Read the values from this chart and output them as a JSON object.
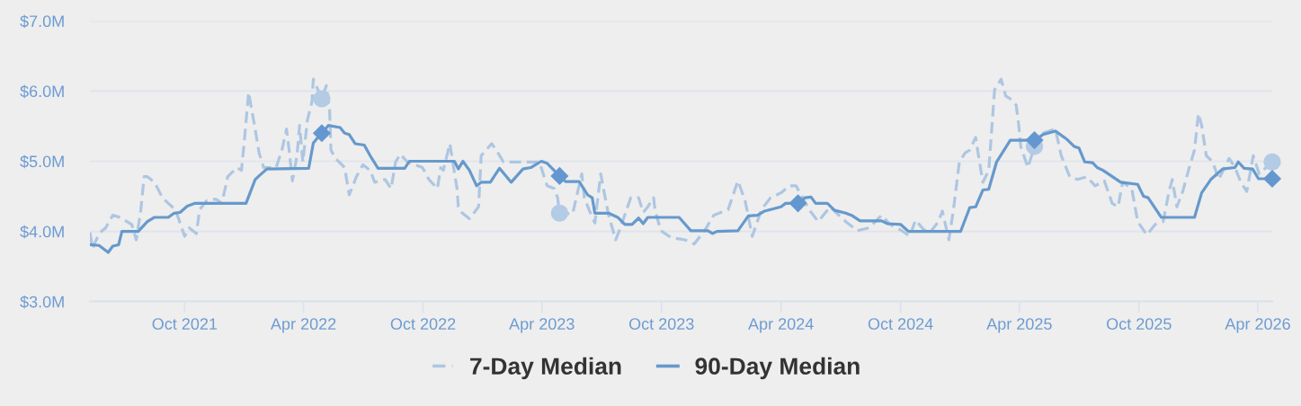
{
  "chart_data": {
    "type": "line",
    "xlim": [
      "2021-05-09",
      "2026-04-23"
    ],
    "ylim": [
      3,
      7
    ],
    "xticks": [
      {
        "value": "2021-10-01",
        "label": "Oct 2021"
      },
      {
        "value": "2022-04-01",
        "label": "Apr 2022"
      },
      {
        "value": "2022-10-01",
        "label": "Oct 2022"
      },
      {
        "value": "2023-04-01",
        "label": "Apr 2023"
      },
      {
        "value": "2023-10-01",
        "label": "Oct 2023"
      },
      {
        "value": "2024-04-01",
        "label": "Apr 2024"
      },
      {
        "value": "2024-10-01",
        "label": "Oct 2024"
      },
      {
        "value": "2025-04-01",
        "label": "Apr 2025"
      },
      {
        "value": "2025-10-01",
        "label": "Oct 2025"
      },
      {
        "value": "2026-04-01",
        "label": "Apr 2026"
      }
    ],
    "yticks": [
      {
        "value": 3,
        "label": "$3.0M"
      },
      {
        "value": 4,
        "label": "$4.0M"
      },
      {
        "value": 5,
        "label": "$5.0M"
      },
      {
        "value": 6,
        "label": "$6.0M"
      },
      {
        "value": 7,
        "label": "$7.0M"
      }
    ],
    "grid": "y",
    "legend": "bottom",
    "series": [
      {
        "name": "7-Day Median",
        "color": "#adc6e2",
        "line_style": "dashed",
        "x": [
          "2021-05-09",
          "2021-05-13",
          "2021-05-23",
          "2021-06-02",
          "2021-06-13",
          "2021-06-24",
          "2021-07-12",
          "2021-07-19",
          "2021-07-26",
          "2021-07-31",
          "2021-08-05",
          "2021-08-16",
          "2021-08-28",
          "2021-09-06",
          "2021-09-17",
          "2021-10-01",
          "2021-10-08",
          "2021-10-19",
          "2021-10-24",
          "2021-11-04",
          "2021-11-18",
          "2021-11-27",
          "2021-12-06",
          "2021-12-20",
          "2021-12-27",
          "2021-12-31",
          "2022-01-07",
          "2022-01-16",
          "2022-01-23",
          "2022-01-30",
          "2022-02-18",
          "2022-02-27",
          "2022-03-06",
          "2022-03-10",
          "2022-03-15",
          "2022-03-22",
          "2022-03-26",
          "2022-03-31",
          "2022-04-07",
          "2022-04-14",
          "2022-04-16",
          "2022-04-23",
          "2022-04-29",
          "2022-05-06",
          "2022-05-11",
          "2022-05-13",
          "2022-05-20",
          "2022-06-03",
          "2022-06-10",
          "2022-06-21",
          "2022-07-01",
          "2022-07-12",
          "2022-07-19",
          "2022-08-04",
          "2022-08-13",
          "2022-08-20",
          "2022-08-27",
          "2022-09-07",
          "2022-09-30",
          "2022-10-10",
          "2022-10-19",
          "2022-10-23",
          "2022-10-28",
          "2022-11-01",
          "2022-11-11",
          "2022-11-22",
          "2022-11-24",
          "2022-11-29",
          "2022-12-11",
          "2022-12-25",
          "2022-12-29",
          "2023-01-14",
          "2023-01-21",
          "2023-02-01",
          "2023-03-28",
          "2023-04-09",
          "2023-04-20",
          "2023-04-25",
          "2023-04-28",
          "2023-05-18",
          "2023-06-01",
          "2023-06-05",
          "2023-06-12",
          "2023-06-21",
          "2023-06-30",
          "2023-07-05",
          "2023-07-12",
          "2023-07-23",
          "2023-07-30",
          "2023-08-15",
          "2023-08-27",
          "2023-09-03",
          "2023-09-10",
          "2023-09-19",
          "2023-09-21",
          "2023-09-30",
          "2023-10-16",
          "2023-11-06",
          "2023-11-20",
          "2023-12-06",
          "2023-12-20",
          "2024-01-11",
          "2024-01-26",
          "2024-02-06",
          "2024-02-17",
          "2024-03-02",
          "2024-03-16",
          "2024-04-01",
          "2024-04-14",
          "2024-04-24",
          "2024-05-14",
          "2024-05-28",
          "2024-06-15",
          "2024-07-09",
          "2024-07-27",
          "2024-08-14",
          "2024-09-02",
          "2024-09-15",
          "2024-10-03",
          "2024-10-15",
          "2024-10-24",
          "2024-11-05",
          "2024-11-14",
          "2024-11-28",
          "2024-12-04",
          "2024-12-14",
          "2024-12-21",
          "2024-12-30",
          "2025-01-08",
          "2025-01-15",
          "2025-01-24",
          "2025-01-29",
          "2025-02-04",
          "2025-02-13",
          "2025-02-22",
          "2025-03-04",
          "2025-03-11",
          "2025-03-18",
          "2025-03-27",
          "2025-03-31",
          "2025-04-03",
          "2025-04-14",
          "2025-04-24",
          "2025-05-07",
          "2025-05-26",
          "2025-06-04",
          "2025-06-17",
          "2025-06-29",
          "2025-07-13",
          "2025-07-26",
          "2025-08-09",
          "2025-08-21",
          "2025-08-30",
          "2025-09-06",
          "2025-09-20",
          "2025-09-29",
          "2025-10-13",
          "2025-10-26",
          "2025-11-07",
          "2025-11-16",
          "2025-11-21",
          "2025-11-28",
          "2025-12-07",
          "2025-12-17",
          "2025-12-25",
          "2025-12-31",
          "2026-01-05",
          "2026-01-12",
          "2026-01-22",
          "2026-01-31",
          "2026-02-16",
          "2026-02-25",
          "2026-03-06",
          "2026-03-15",
          "2026-03-25",
          "2026-04-03",
          "2026-04-23"
        ],
        "values": [
          3.99,
          3.76,
          3.97,
          4.05,
          4.23,
          4.2,
          4.1,
          3.88,
          4.31,
          4.78,
          4.78,
          4.7,
          4.48,
          4.4,
          4.31,
          3.93,
          4.05,
          3.97,
          4.31,
          4.44,
          4.46,
          4.4,
          4.78,
          4.91,
          4.87,
          5.25,
          5.98,
          5.51,
          5.12,
          4.91,
          4.91,
          5.16,
          5.46,
          5.16,
          4.72,
          5.08,
          5.51,
          4.99,
          5.59,
          5.85,
          6.17,
          6.02,
          5.89,
          6.08,
          5.72,
          5.16,
          5.04,
          4.91,
          4.52,
          4.78,
          4.95,
          4.87,
          4.7,
          4.74,
          4.61,
          4.99,
          5.1,
          4.99,
          4.91,
          4.74,
          4.65,
          4.61,
          4.91,
          4.87,
          5.25,
          4.61,
          4.35,
          4.27,
          4.18,
          4.35,
          5.08,
          5.25,
          5.16,
          4.99,
          4.99,
          4.65,
          4.61,
          4.48,
          4.26,
          4.25,
          4.82,
          4.48,
          4.31,
          4.12,
          4.82,
          4.57,
          4.23,
          3.88,
          4.05,
          4.48,
          4.48,
          4.27,
          4.35,
          4.48,
          4.31,
          4.01,
          3.91,
          3.88,
          3.82,
          4.01,
          4.23,
          4.31,
          4.72,
          4.44,
          3.93,
          4.31,
          4.48,
          4.55,
          4.65,
          4.65,
          4.31,
          4.14,
          4.35,
          4.14,
          4.01,
          4.05,
          4.23,
          4.1,
          4.01,
          3.93,
          4.16,
          4.03,
          3.97,
          4.14,
          4.29,
          3.88,
          4.31,
          4.99,
          5.12,
          5.16,
          5.34,
          5.04,
          4.7,
          4.87,
          6.02,
          6.17,
          5.93,
          5.89,
          5.8,
          5.51,
          5.21,
          4.91,
          5.21,
          5.4,
          5.46,
          5.08,
          4.78,
          4.74,
          4.78,
          4.65,
          4.72,
          4.4,
          4.35,
          4.7,
          4.61,
          4.14,
          3.95,
          4.1,
          4.14,
          4.57,
          4.74,
          4.35,
          4.57,
          4.91,
          5.16,
          5.68,
          5.51,
          5.08,
          4.99,
          4.74,
          5.04,
          4.91,
          4.7,
          4.57,
          5.08,
          4.82,
          4.99
        ]
      },
      {
        "name": "90-Day Median",
        "color": "#6699cc",
        "line_style": "solid",
        "x": [
          "2021-05-09",
          "2021-05-23",
          "2021-06-06",
          "2021-06-13",
          "2021-06-22",
          "2021-06-27",
          "2021-07-22",
          "2021-08-05",
          "2021-08-16",
          "2021-09-06",
          "2021-09-15",
          "2021-09-24",
          "2021-10-05",
          "2021-10-17",
          "2022-01-03",
          "2022-01-17",
          "2022-01-24",
          "2022-02-04",
          "2022-04-09",
          "2022-04-16",
          "2022-04-23",
          "2022-04-29",
          "2022-05-09",
          "2022-05-27",
          "2022-06-03",
          "2022-06-10",
          "2022-06-19",
          "2022-07-03",
          "2022-07-12",
          "2022-07-24",
          "2022-09-03",
          "2022-09-10",
          "2022-11-18",
          "2022-11-24",
          "2022-12-01",
          "2022-12-11",
          "2022-12-22",
          "2022-12-29",
          "2023-01-12",
          "2023-01-26",
          "2023-02-13",
          "2023-03-03",
          "2023-03-15",
          "2023-03-31",
          "2023-04-09",
          "2023-04-28",
          "2023-05-07",
          "2023-05-28",
          "2023-06-10",
          "2023-06-17",
          "2023-06-21",
          "2023-07-12",
          "2023-07-26",
          "2023-08-06",
          "2023-08-17",
          "2023-08-27",
          "2023-09-03",
          "2023-09-10",
          "2023-10-28",
          "2023-11-15",
          "2023-12-11",
          "2023-12-18",
          "2023-12-25",
          "2024-01-26",
          "2024-02-11",
          "2024-02-25",
          "2024-03-07",
          "2024-04-01",
          "2024-04-08",
          "2024-04-27",
          "2024-05-08",
          "2024-05-17",
          "2024-05-24",
          "2024-06-11",
          "2024-06-22",
          "2024-07-09",
          "2024-07-18",
          "2024-07-31",
          "2024-09-02",
          "2024-09-11",
          "2024-10-01",
          "2024-10-13",
          "2025-01-01",
          "2025-01-15",
          "2025-01-24",
          "2025-02-04",
          "2025-02-13",
          "2025-02-25",
          "2025-03-18",
          "2025-04-03",
          "2025-04-24",
          "2025-05-07",
          "2025-05-26",
          "2025-06-13",
          "2025-06-24",
          "2025-07-01",
          "2025-07-10",
          "2025-07-22",
          "2025-07-29",
          "2025-08-07",
          "2025-09-03",
          "2025-09-29",
          "2025-10-08",
          "2025-10-15",
          "2025-11-04",
          "2025-12-25",
          "2026-01-05",
          "2026-01-19",
          "2026-02-06",
          "2026-02-25",
          "2026-03-02",
          "2026-03-11",
          "2026-03-24",
          "2026-04-02",
          "2026-04-23"
        ],
        "values": [
          3.81,
          3.8,
          3.7,
          3.79,
          3.81,
          4.0,
          4.0,
          4.14,
          4.2,
          4.2,
          4.26,
          4.27,
          4.36,
          4.4,
          4.4,
          4.74,
          4.8,
          4.89,
          4.9,
          5.26,
          5.34,
          5.4,
          5.51,
          5.48,
          5.4,
          5.38,
          5.25,
          5.23,
          5.08,
          4.9,
          4.9,
          5.0,
          5.0,
          4.89,
          5.0,
          4.87,
          4.65,
          4.7,
          4.7,
          4.9,
          4.7,
          4.89,
          4.91,
          5.0,
          4.97,
          4.79,
          4.71,
          4.71,
          4.52,
          4.48,
          4.26,
          4.26,
          4.2,
          4.1,
          4.1,
          4.19,
          4.11,
          4.2,
          4.2,
          4.01,
          4.01,
          3.97,
          4.0,
          4.01,
          4.22,
          4.23,
          4.29,
          4.35,
          4.4,
          4.4,
          4.48,
          4.49,
          4.4,
          4.4,
          4.3,
          4.26,
          4.23,
          4.15,
          4.15,
          4.11,
          4.1,
          4.0,
          4.0,
          4.34,
          4.35,
          4.59,
          4.6,
          4.99,
          5.3,
          5.3,
          5.3,
          5.38,
          5.43,
          5.31,
          5.21,
          5.19,
          4.99,
          4.98,
          4.91,
          4.87,
          4.7,
          4.67,
          4.5,
          4.48,
          4.2,
          4.2,
          4.55,
          4.74,
          4.89,
          4.91,
          4.99,
          4.9,
          4.89,
          4.75,
          4.75
        ]
      },
      {
        "type": "scatter",
        "color": "#b3cbe5",
        "marker": "circle",
        "x": [
          "2022-04-29",
          "2023-04-28",
          "2025-04-24",
          "2026-04-23"
        ],
        "values": [
          5.89,
          4.26,
          5.21,
          4.99
        ]
      },
      {
        "type": "scatter",
        "color": "#6497cf",
        "marker": "diamond",
        "x": [
          "2022-04-29",
          "2023-04-28",
          "2024-04-27",
          "2025-04-24",
          "2026-04-23"
        ],
        "values": [
          5.4,
          4.79,
          4.4,
          5.3,
          4.75
        ]
      }
    ]
  }
}
